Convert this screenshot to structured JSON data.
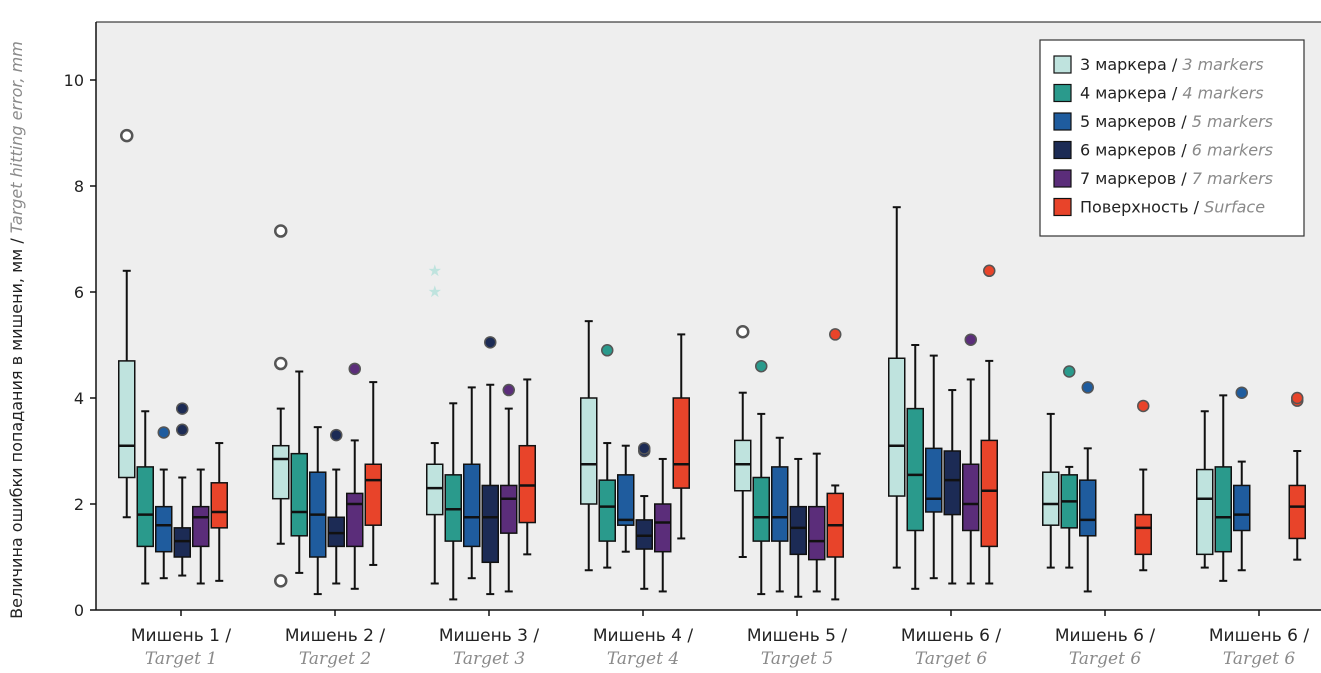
{
  "chart_data": {
    "type": "boxplot",
    "ylabel_ru": "Величина ошибки попадания в мишени, мм / ",
    "ylabel_en": "Target hitting error, mm",
    "ylim": [
      0,
      11
    ],
    "yticks": [
      "0",
      "2",
      "4",
      "6",
      "8",
      "10"
    ],
    "ytick_values": [
      0,
      2,
      4,
      6,
      8,
      10
    ],
    "grid": false,
    "legend_position": "top-right",
    "categories": [
      {
        "ru": "Мишень 1 /",
        "en": "Target 1"
      },
      {
        "ru": "Мишень 2 /",
        "en": "Target 2"
      },
      {
        "ru": "Мишень 3 /",
        "en": "Target 3"
      },
      {
        "ru": "Мишень 4 /",
        "en": "Target 4"
      },
      {
        "ru": "Мишень 5 /",
        "en": "Target 5"
      },
      {
        "ru": "Мишень 6 /",
        "en": "Target 6"
      },
      {
        "ru": "Мишень 6 /",
        "en": "Target 6"
      },
      {
        "ru": "Мишень 6 /",
        "en": "Target 6"
      }
    ],
    "series": [
      {
        "name_ru": "3 маркера / ",
        "name_en": "3 markers",
        "color": "#bfe3de",
        "boxes": [
          {
            "min": 1.75,
            "q1": 2.5,
            "median": 3.1,
            "q3": 4.7,
            "max": 6.4,
            "outliers": [
              8.95
            ],
            "outlier_style": "ring"
          },
          {
            "min": 1.25,
            "q1": 2.1,
            "median": 2.85,
            "q3": 3.1,
            "max": 3.8,
            "outliers": [
              4.65,
              0.55,
              7.15
            ],
            "outlier_style": "ring"
          },
          {
            "min": 0.5,
            "q1": 1.8,
            "median": 2.3,
            "q3": 2.75,
            "max": 3.15,
            "outliers": [
              6.4,
              6.0
            ],
            "outlier_style": "star"
          },
          {
            "min": 0.75,
            "q1": 2.0,
            "median": 2.75,
            "q3": 4.0,
            "max": 5.45,
            "outliers": [],
            "outlier_style": "ring"
          },
          {
            "min": 1.0,
            "q1": 2.25,
            "median": 2.75,
            "q3": 3.2,
            "max": 4.1,
            "outliers": [
              5.25
            ],
            "outlier_style": "ring"
          },
          {
            "min": 0.8,
            "q1": 2.15,
            "median": 3.1,
            "q3": 4.75,
            "max": 7.6,
            "outliers": [],
            "outlier_style": "ring"
          },
          {
            "min": 0.8,
            "q1": 1.6,
            "median": 2.0,
            "q3": 2.6,
            "max": 3.7,
            "outliers": [],
            "outlier_style": "ring"
          },
          {
            "min": 0.8,
            "q1": 1.05,
            "median": 2.1,
            "q3": 2.65,
            "max": 3.75,
            "outliers": [],
            "outlier_style": "ring"
          }
        ]
      },
      {
        "name_ru": "4 маркера / ",
        "name_en": "4 markers",
        "color": "#2a9a8c",
        "boxes": [
          {
            "min": 0.5,
            "q1": 1.2,
            "median": 1.8,
            "q3": 2.7,
            "max": 3.75,
            "outliers": [],
            "outlier_style": "dot"
          },
          {
            "min": 0.7,
            "q1": 1.4,
            "median": 1.85,
            "q3": 2.95,
            "max": 4.5,
            "outliers": [],
            "outlier_style": "dot"
          },
          {
            "min": 0.2,
            "q1": 1.3,
            "median": 1.9,
            "q3": 2.55,
            "max": 3.9,
            "outliers": [],
            "outlier_style": "dot"
          },
          {
            "min": 0.8,
            "q1": 1.3,
            "median": 1.95,
            "q3": 2.45,
            "max": 3.15,
            "outliers": [
              4.9
            ],
            "outlier_style": "dot"
          },
          {
            "min": 0.3,
            "q1": 1.3,
            "median": 1.75,
            "q3": 2.5,
            "max": 3.7,
            "outliers": [
              4.6
            ],
            "outlier_style": "dot"
          },
          {
            "min": 0.4,
            "q1": 1.5,
            "median": 2.55,
            "q3": 3.8,
            "max": 5.0,
            "outliers": [],
            "outlier_style": "dot"
          },
          {
            "min": 0.8,
            "q1": 1.55,
            "median": 2.05,
            "q3": 2.55,
            "max": 2.7,
            "outliers": [
              4.5
            ],
            "outlier_style": "dot"
          },
          {
            "min": 0.55,
            "q1": 1.1,
            "median": 1.75,
            "q3": 2.7,
            "max": 4.05,
            "outliers": [],
            "outlier_style": "dot"
          }
        ]
      },
      {
        "name_ru": "5 маркеров / ",
        "name_en": "5 markers",
        "color": "#1f5c9e",
        "boxes": [
          {
            "min": 0.6,
            "q1": 1.1,
            "median": 1.6,
            "q3": 1.95,
            "max": 2.65,
            "outliers": [
              3.35
            ],
            "outlier_style": "dot"
          },
          {
            "min": 0.3,
            "q1": 1.0,
            "median": 1.8,
            "q3": 2.6,
            "max": 3.45,
            "outliers": [],
            "outlier_style": "dot"
          },
          {
            "min": 0.6,
            "q1": 1.2,
            "median": 1.75,
            "q3": 2.75,
            "max": 4.2,
            "outliers": [],
            "outlier_style": "dot"
          },
          {
            "min": 1.1,
            "q1": 1.6,
            "median": 1.7,
            "q3": 2.55,
            "max": 3.1,
            "outliers": [],
            "outlier_style": "dot"
          },
          {
            "min": 0.35,
            "q1": 1.3,
            "median": 1.75,
            "q3": 2.7,
            "max": 3.25,
            "outliers": [],
            "outlier_style": "dot"
          },
          {
            "min": 0.6,
            "q1": 1.85,
            "median": 2.1,
            "q3": 3.05,
            "max": 4.8,
            "outliers": [],
            "outlier_style": "dot"
          },
          {
            "min": 0.35,
            "q1": 1.4,
            "median": 1.7,
            "q3": 2.45,
            "max": 3.05,
            "outliers": [
              4.2
            ],
            "outlier_style": "dot"
          },
          {
            "min": 0.75,
            "q1": 1.5,
            "median": 1.8,
            "q3": 2.35,
            "max": 2.8,
            "outliers": [
              4.1
            ],
            "outlier_style": "dot"
          }
        ]
      },
      {
        "name_ru": "6 маркеров / ",
        "name_en": "6 markers",
        "color": "#1c2b55",
        "boxes": [
          {
            "min": 0.65,
            "q1": 1.0,
            "median": 1.3,
            "q3": 1.55,
            "max": 2.5,
            "outliers": [
              3.4,
              3.8
            ],
            "outlier_style": "dot"
          },
          {
            "min": 0.5,
            "q1": 1.2,
            "median": 1.45,
            "q3": 1.75,
            "max": 2.65,
            "outliers": [
              3.3
            ],
            "outlier_style": "dot"
          },
          {
            "min": 0.3,
            "q1": 0.9,
            "median": 1.75,
            "q3": 2.35,
            "max": 4.25,
            "outliers": [
              5.05
            ],
            "outlier_style": "dot"
          },
          {
            "min": 0.4,
            "q1": 1.15,
            "median": 1.4,
            "q3": 1.7,
            "max": 2.15,
            "outliers": [
              3.0,
              3.05
            ],
            "outlier_style": "dot"
          },
          {
            "min": 0.25,
            "q1": 1.05,
            "median": 1.55,
            "q3": 1.95,
            "max": 2.85,
            "outliers": [],
            "outlier_style": "dot"
          },
          {
            "min": 0.5,
            "q1": 1.8,
            "median": 2.45,
            "q3": 3.0,
            "max": 4.15,
            "outliers": [],
            "outlier_style": "dot"
          },
          {
            "min": null,
            "q1": null,
            "median": null,
            "q3": null,
            "max": null,
            "outliers": [],
            "outlier_style": "dot"
          },
          {
            "min": null,
            "q1": null,
            "median": null,
            "q3": null,
            "max": null,
            "outliers": [],
            "outlier_style": "dot"
          }
        ]
      },
      {
        "name_ru": "7 маркеров / ",
        "name_en": "7 markers",
        "color": "#5b2d7a",
        "boxes": [
          {
            "min": 0.5,
            "q1": 1.2,
            "median": 1.75,
            "q3": 1.95,
            "max": 2.65,
            "outliers": [],
            "outlier_style": "dot"
          },
          {
            "min": 0.4,
            "q1": 1.2,
            "median": 2.0,
            "q3": 2.2,
            "max": 3.2,
            "outliers": [
              4.55
            ],
            "outlier_style": "dot"
          },
          {
            "min": 0.35,
            "q1": 1.45,
            "median": 2.1,
            "q3": 2.35,
            "max": 3.8,
            "outliers": [
              4.15
            ],
            "outlier_style": "dot"
          },
          {
            "min": 0.35,
            "q1": 1.1,
            "median": 1.65,
            "q3": 2.0,
            "max": 2.85,
            "outliers": [],
            "outlier_style": "dot"
          },
          {
            "min": 0.35,
            "q1": 0.95,
            "median": 1.3,
            "q3": 1.95,
            "max": 2.95,
            "outliers": [],
            "outlier_style": "dot"
          },
          {
            "min": 0.5,
            "q1": 1.5,
            "median": 2.0,
            "q3": 2.75,
            "max": 4.35,
            "outliers": [
              5.1
            ],
            "outlier_style": "dot"
          },
          {
            "min": null,
            "q1": null,
            "median": null,
            "q3": null,
            "max": null,
            "outliers": [],
            "outlier_style": "dot"
          },
          {
            "min": null,
            "q1": null,
            "median": null,
            "q3": null,
            "max": null,
            "outliers": [],
            "outlier_style": "dot"
          }
        ]
      },
      {
        "name_ru": "Поверхность / ",
        "name_en": "Surface",
        "color": "#e8442a",
        "boxes": [
          {
            "min": 0.55,
            "q1": 1.55,
            "median": 1.85,
            "q3": 2.4,
            "max": 3.15,
            "outliers": [],
            "outlier_style": "dot"
          },
          {
            "min": 0.85,
            "q1": 1.6,
            "median": 2.45,
            "q3": 2.75,
            "max": 4.3,
            "outliers": [],
            "outlier_style": "dot"
          },
          {
            "min": 1.05,
            "q1": 1.65,
            "median": 2.35,
            "q3": 3.1,
            "max": 4.35,
            "outliers": [],
            "outlier_style": "dot"
          },
          {
            "min": 1.35,
            "q1": 2.3,
            "median": 2.75,
            "q3": 4.0,
            "max": 5.2,
            "outliers": [],
            "outlier_style": "dot"
          },
          {
            "min": 0.2,
            "q1": 1.0,
            "median": 1.6,
            "q3": 2.2,
            "max": 2.35,
            "outliers": [
              5.2
            ],
            "outlier_style": "dot"
          },
          {
            "min": 0.5,
            "q1": 1.2,
            "median": 2.25,
            "q3": 3.2,
            "max": 4.7,
            "outliers": [
              6.4
            ],
            "outlier_style": "dot"
          },
          {
            "min": 0.75,
            "q1": 1.05,
            "median": 1.55,
            "q3": 1.8,
            "max": 2.65,
            "outliers": [
              3.85
            ],
            "outlier_style": "dot"
          },
          {
            "min": 0.95,
            "q1": 1.35,
            "median": 1.95,
            "q3": 2.35,
            "max": 3.0,
            "outliers": [
              3.95,
              4.0
            ],
            "outlier_style": "dot"
          }
        ]
      }
    ]
  }
}
